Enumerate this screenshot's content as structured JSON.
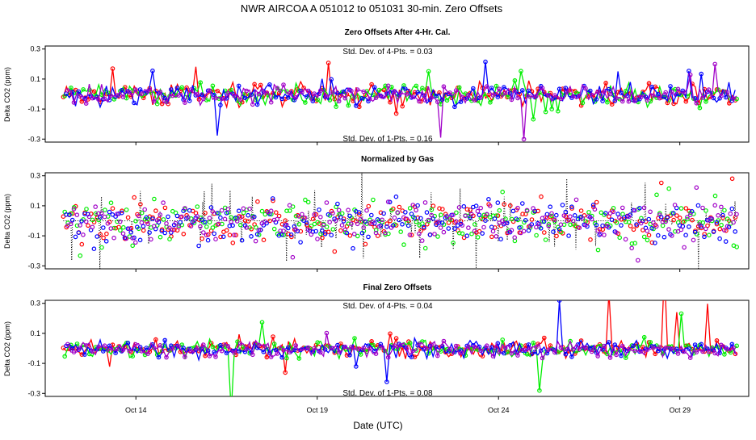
{
  "chart_data": {
    "type": "scatter",
    "title": "NWR   AIRCOA A   051012 to 051031   30-min. Zero Offsets",
    "xlabel": "Date (UTC)",
    "x_range_days": [
      11.5,
      30.9
    ],
    "x_ticks": [
      {
        "day": 14,
        "label": "Oct 14"
      },
      {
        "day": 19,
        "label": "Oct 19"
      },
      {
        "day": 24,
        "label": "Oct 24"
      },
      {
        "day": 29,
        "label": "Oct 29"
      }
    ],
    "series_colors": [
      "#ff0000",
      "#00ee00",
      "#0000ff",
      "#a000c8"
    ],
    "panels": [
      {
        "title": "Zero Offsets After 4-Hr. Cal.",
        "ylabel": "Delta CO2 (ppm)",
        "ylim": [
          -0.32,
          0.32
        ],
        "yticks": [
          {
            "v": 0.3,
            "label": "0.3"
          },
          {
            "v": 0.1,
            "label": "0.1"
          },
          {
            "v": -0.1,
            "label": "-0.1"
          },
          {
            "v": -0.3,
            "label": "-0.3"
          }
        ],
        "stats_top": "Std. Dev. of 4-Pts. =  0.03",
        "stats_bottom": "Std. Dev. of 1-Pts. =  0.16",
        "spread": 0.055,
        "style": "lines"
      },
      {
        "title": "Normalized by Gas",
        "ylabel": "Delta CO2 (ppm)",
        "ylim": [
          -0.32,
          0.32
        ],
        "yticks": [
          {
            "v": 0.3,
            "label": "0.3"
          },
          {
            "v": 0.1,
            "label": "0.1"
          },
          {
            "v": -0.1,
            "label": "-0.1"
          },
          {
            "v": -0.3,
            "label": "-0.3"
          }
        ],
        "stats_top": "",
        "stats_bottom": "",
        "spread": 0.11,
        "style": "points"
      },
      {
        "title": "Final Zero Offsets",
        "ylabel": "Delta CO2 (ppm)",
        "ylim": [
          -0.32,
          0.32
        ],
        "yticks": [
          {
            "v": 0.3,
            "label": "0.3"
          },
          {
            "v": 0.1,
            "label": "0.1"
          },
          {
            "v": -0.1,
            "label": "-0.1"
          },
          {
            "v": -0.3,
            "label": "-0.3"
          }
        ],
        "stats_top": "Std. Dev. of 4-Pts. =  0.04",
        "stats_bottom": "Std. Dev. of 1-Pts. =  0.08",
        "spread": 0.045,
        "style": "lines"
      }
    ]
  }
}
